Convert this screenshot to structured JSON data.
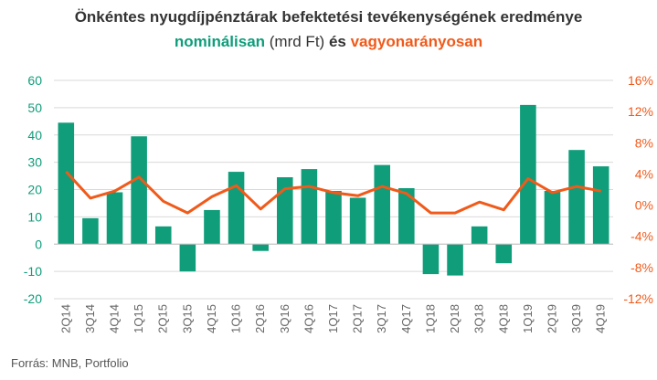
{
  "title_line1": "Önkéntes nyugdíjpénztárak befektetési tevékenységének eredménye",
  "title_line2": {
    "part1": "nominálisan",
    "part2": " (mrd Ft) ",
    "part3": "és ",
    "part4": "vagyonarányosan"
  },
  "source": "Forrás: MNB, Portfolio",
  "colors": {
    "bars": "#0f9d7a",
    "line": "#f05a1a",
    "grid": "#d9d9d9"
  },
  "chart_data": {
    "type": "bar",
    "categories": [
      "2Q14",
      "3Q14",
      "4Q14",
      "1Q15",
      "2Q15",
      "3Q15",
      "4Q15",
      "1Q16",
      "2Q16",
      "3Q16",
      "4Q16",
      "1Q17",
      "2Q17",
      "3Q17",
      "4Q17",
      "1Q18",
      "2Q18",
      "3Q18",
      "4Q18",
      "1Q19",
      "2Q19",
      "3Q19",
      "4Q19"
    ],
    "series": [
      {
        "axis": "left",
        "type": "bar",
        "values": [
          44.5,
          9.5,
          19,
          39.5,
          6.5,
          -10,
          12.5,
          26.5,
          -2.5,
          24.5,
          27.5,
          19.5,
          17,
          29,
          20.5,
          -11,
          -11.5,
          6.5,
          -7,
          51,
          19.5,
          34.5,
          28.5
        ]
      },
      {
        "axis": "right",
        "type": "line",
        "values": [
          4.3,
          0.9,
          1.8,
          3.6,
          0.5,
          -1.0,
          1.1,
          2.5,
          -0.5,
          2.1,
          2.4,
          1.6,
          1.2,
          2.4,
          1.5,
          -1.0,
          -1.0,
          0.4,
          -0.6,
          3.4,
          1.6,
          2.4,
          1.8
        ]
      }
    ],
    "y_left": {
      "ticks": [
        "60",
        "50",
        "40",
        "30",
        "20",
        "10",
        "0",
        "-10",
        "-20"
      ],
      "ylim": [
        -20,
        60
      ]
    },
    "y_right": {
      "ticks": [
        "16%",
        "12%",
        "8%",
        "4%",
        "0%",
        "-4%",
        "-8%",
        "-12%"
      ],
      "ylim": [
        -12,
        16
      ]
    },
    "grid": true
  }
}
